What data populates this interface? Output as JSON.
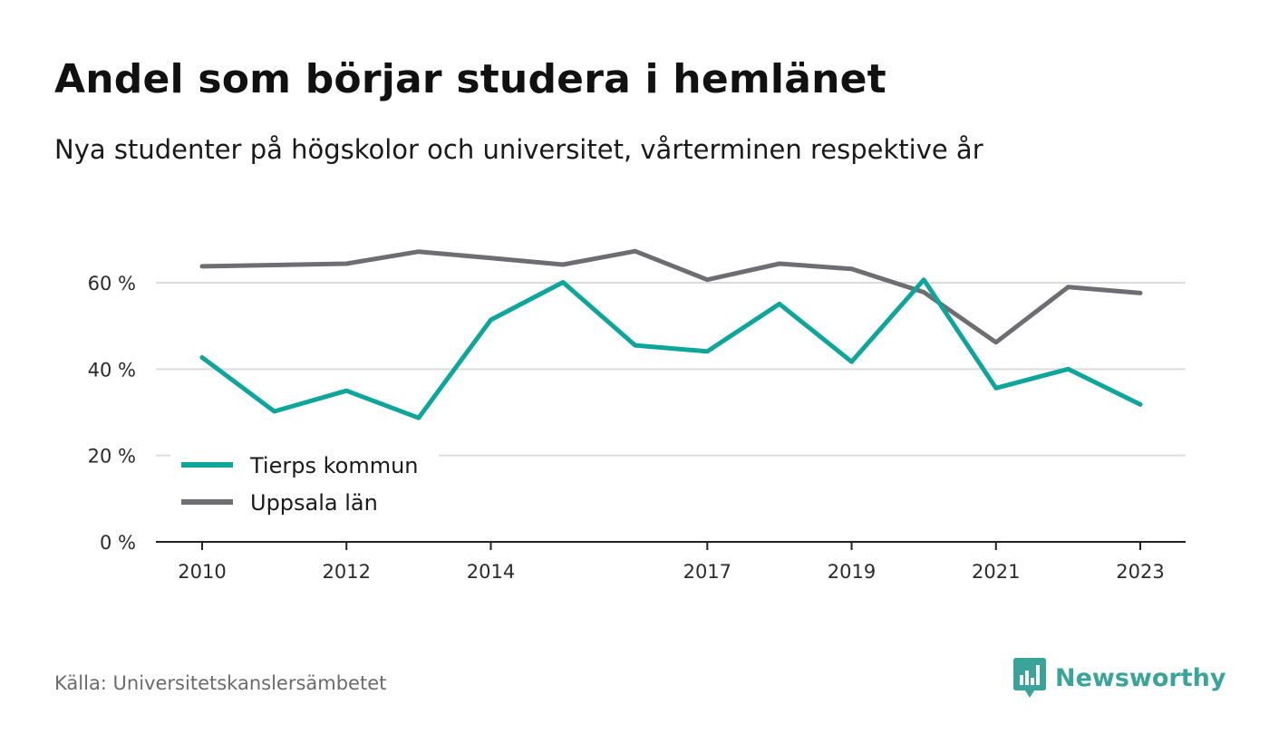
{
  "title": "Andel som börjar studera i hemlänet",
  "subtitle": "Nya studenter på högskolor och universitet, vårterminen respektive år",
  "source": "Källa: Universitetskanslersämbetet",
  "brand": {
    "name": "Newsworthy",
    "logo_icon": "bar-chart-speech-bubble-icon",
    "color": "#3aa39a"
  },
  "chart_data": {
    "type": "line",
    "x": [
      2010,
      2011,
      2012,
      2013,
      2014,
      2015,
      2016,
      2017,
      2018,
      2019,
      2020,
      2021,
      2022,
      2023
    ],
    "x_tick_labels": [
      "2010",
      "2012",
      "2014",
      "2017",
      "2019",
      "2021",
      "2023"
    ],
    "y_tick_labels": [
      "0 %",
      "20 %",
      "40 %",
      "60 %"
    ],
    "y_ticks": [
      0,
      20,
      40,
      60
    ],
    "ylim": [
      0,
      70
    ],
    "grid": true,
    "legend_position": "bottom-left",
    "series": [
      {
        "name": "Tierps kommun",
        "color": "#0ea59a",
        "values": [
          42.7,
          30.2,
          35.0,
          28.7,
          51.4,
          60.1,
          45.5,
          44.1,
          55.1,
          41.7,
          60.7,
          35.6,
          40.0,
          31.8
        ]
      },
      {
        "name": "Uppsala län",
        "color": "#6e6e72",
        "values": [
          63.8,
          64.1,
          64.4,
          67.2,
          65.7,
          64.2,
          67.3,
          60.7,
          64.4,
          63.2,
          57.8,
          46.2,
          59.0,
          57.6
        ]
      }
    ]
  }
}
